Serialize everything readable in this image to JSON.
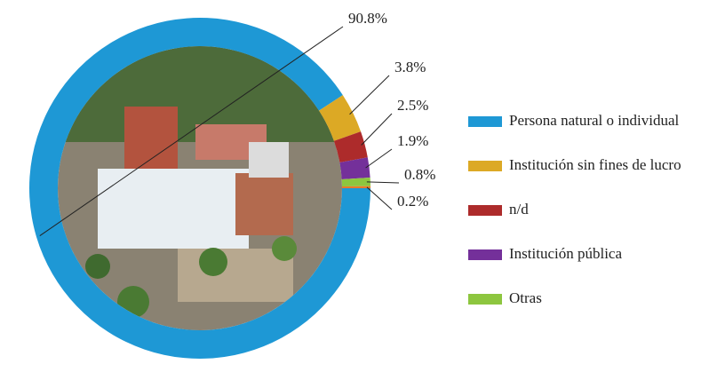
{
  "chart_data": {
    "type": "donut",
    "categories": [
      "Persona natural o individual",
      "Institución sin fines de lucro",
      "n/d",
      "Institución pública",
      "Otras",
      null
    ],
    "values": [
      90.8,
      3.8,
      2.5,
      1.9,
      0.8,
      0.2
    ],
    "value_labels": [
      "90.8%",
      "3.8%",
      "2.5%",
      "1.9%",
      "0.8%",
      "0.2%"
    ],
    "colors": [
      "#1e98d5",
      "#dca925",
      "#ad2b2b",
      "#74309a",
      "#8dc63f",
      "#e8792b"
    ]
  }
}
